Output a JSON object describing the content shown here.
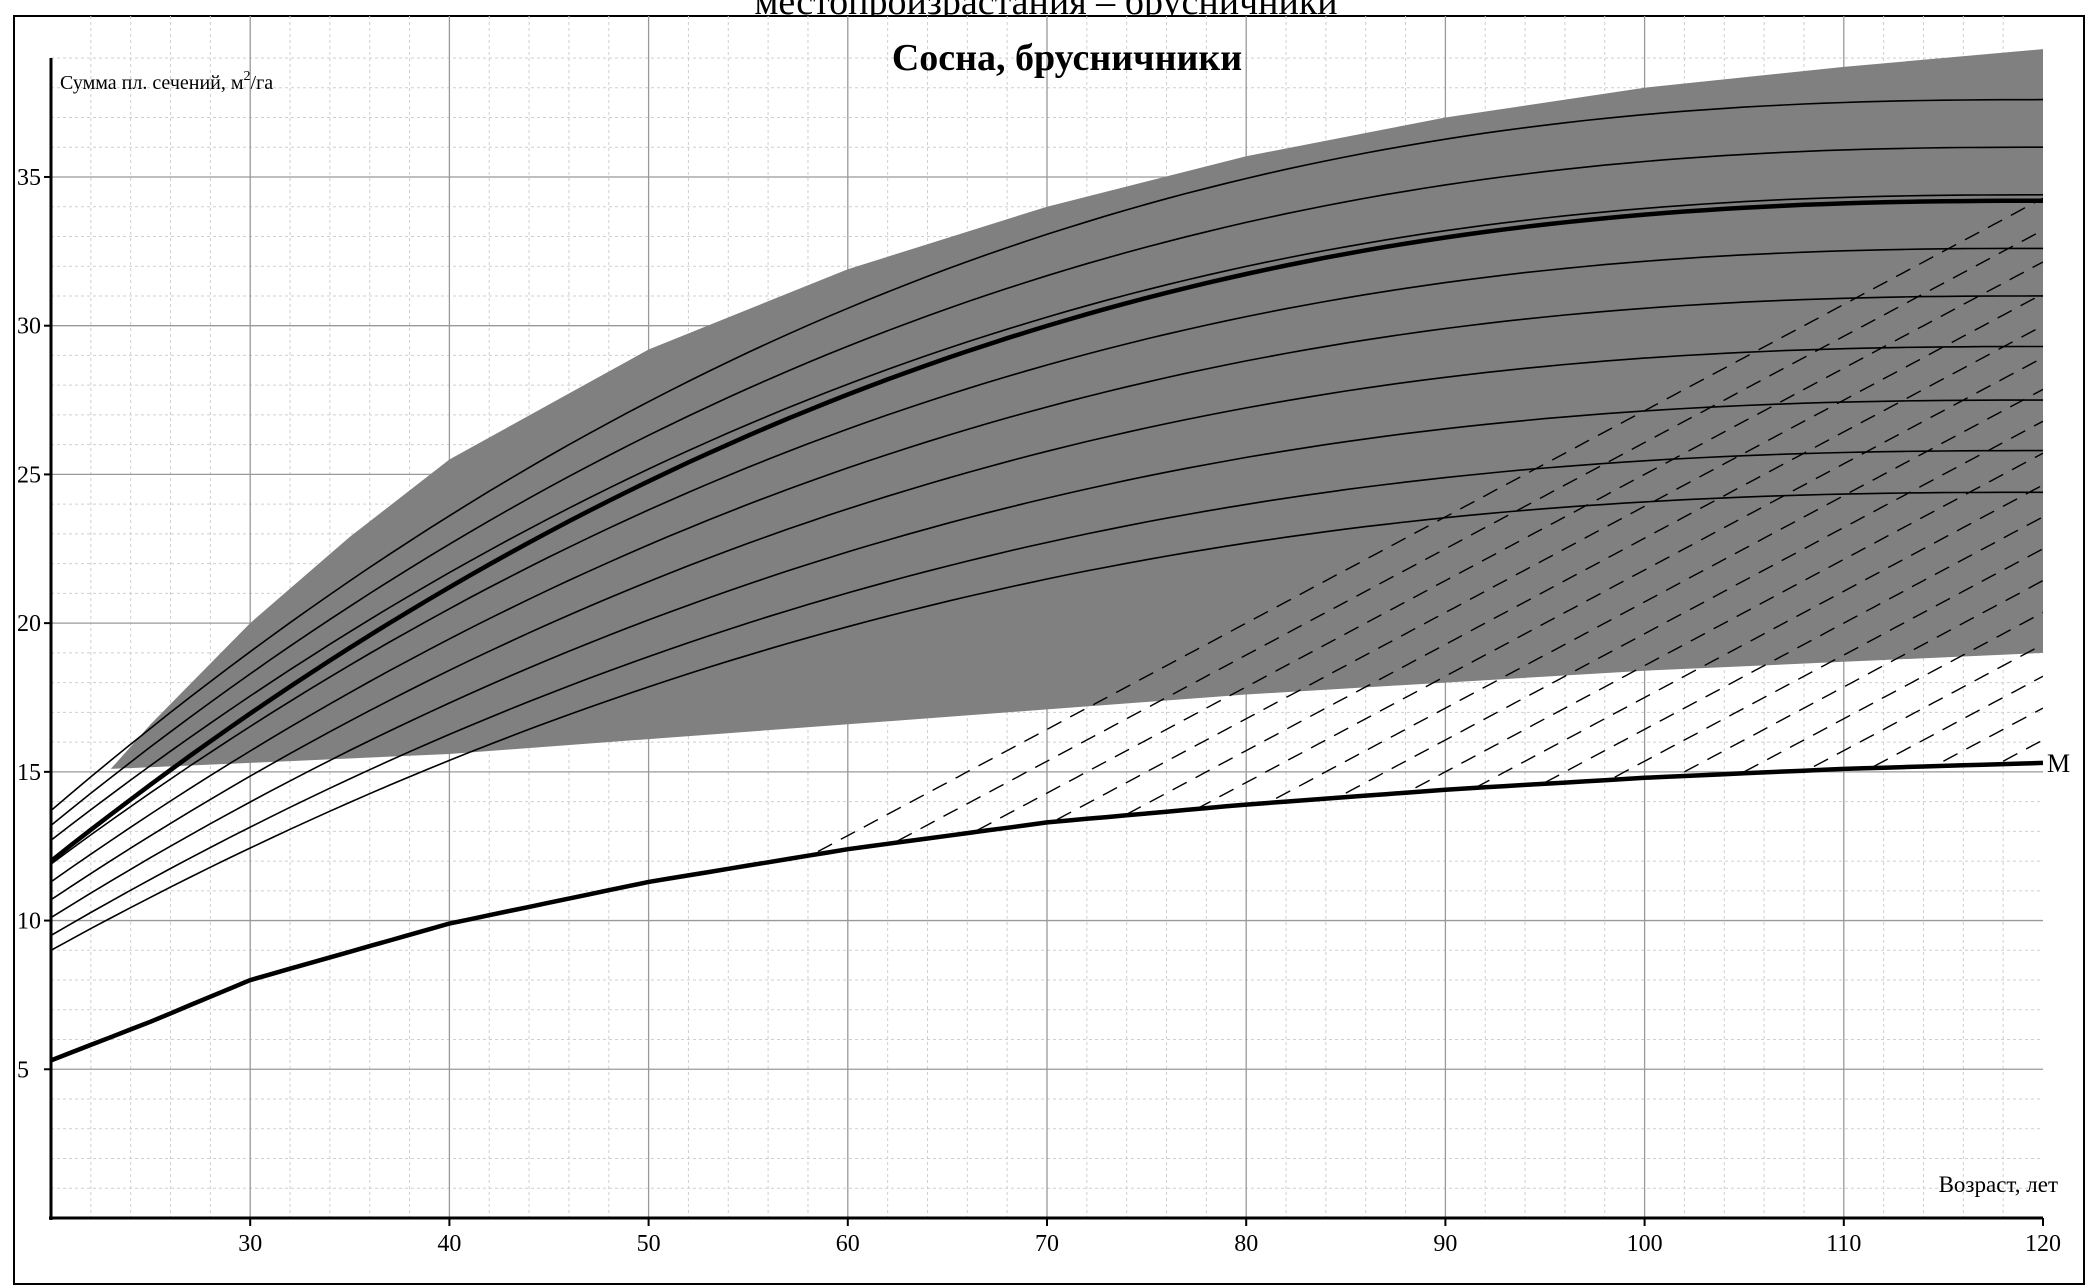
{
  "page_header": "местопроизрастания – брусничники",
  "chart_data": {
    "type": "line",
    "title": "Сосна, брусничники",
    "xlabel": "Возраст, лет",
    "ylabel_prefix": "Сумма пл. сечений, м",
    "ylabel_sup": "2",
    "ylabel_suffix": "/га",
    "xlim": [
      20,
      120
    ],
    "ylim": [
      0,
      39
    ],
    "grid": true,
    "x_ticks": [
      30,
      40,
      50,
      60,
      70,
      80,
      90,
      100,
      110,
      120
    ],
    "y_ticks": [
      5,
      10,
      15,
      20,
      25,
      30,
      35
    ],
    "shaded_band": {
      "color": "#808080",
      "lower": [
        [
          23,
          15.1
        ],
        [
          30,
          15.3
        ],
        [
          40,
          15.6
        ],
        [
          50,
          16.1
        ],
        [
          60,
          16.6
        ],
        [
          70,
          17.1
        ],
        [
          80,
          17.6
        ],
        [
          90,
          18.0
        ],
        [
          100,
          18.4
        ],
        [
          110,
          18.7
        ],
        [
          120,
          19.0
        ]
      ],
      "upper": [
        [
          23,
          15.1
        ],
        [
          25,
          16.6
        ],
        [
          30,
          20.0
        ],
        [
          35,
          22.9
        ],
        [
          40,
          25.5
        ],
        [
          50,
          29.2
        ],
        [
          60,
          31.9
        ],
        [
          70,
          34.0
        ],
        [
          80,
          35.7
        ],
        [
          90,
          37.0
        ],
        [
          100,
          38.0
        ],
        [
          110,
          38.7
        ],
        [
          120,
          39.3
        ]
      ]
    },
    "solid_curves": [
      {
        "start": 13.7,
        "end": 37.6
      },
      {
        "start": 13.2,
        "end": 36.0
      },
      {
        "start": 12.7,
        "end": 34.4
      },
      {
        "start": 11.9,
        "end": 32.6
      },
      {
        "start": 11.3,
        "end": 31.0
      },
      {
        "start": 10.7,
        "end": 29.3
      },
      {
        "start": 10.1,
        "end": 27.5
      },
      {
        "start": 9.5,
        "end": 25.8
      },
      {
        "start": 9.0,
        "end": 24.4
      }
    ],
    "highlight_curve": {
      "start": 12.0,
      "end": 34.2
    },
    "m_curve": {
      "label": "M",
      "points": [
        [
          20,
          5.3
        ],
        [
          25,
          6.6
        ],
        [
          30,
          8.0
        ],
        [
          40,
          9.9
        ],
        [
          50,
          11.3
        ],
        [
          60,
          12.4
        ],
        [
          70,
          13.3
        ],
        [
          80,
          13.9
        ],
        [
          90,
          14.4
        ],
        [
          100,
          14.8
        ],
        [
          110,
          15.1
        ],
        [
          120,
          15.3
        ]
      ]
    },
    "dashed_lines_x0": [
      24,
      27,
      30,
      33,
      36,
      39,
      42,
      45,
      48,
      51,
      54,
      57,
      60,
      63,
      66,
      69,
      72,
      75,
      78,
      81,
      84,
      87,
      90,
      93,
      96,
      99,
      102,
      105,
      108,
      111,
      114,
      117,
      120,
      123,
      126,
      129,
      132,
      135,
      138,
      141,
      144,
      147,
      150,
      153,
      156,
      159,
      162,
      165,
      168,
      171,
      174,
      177
    ]
  }
}
